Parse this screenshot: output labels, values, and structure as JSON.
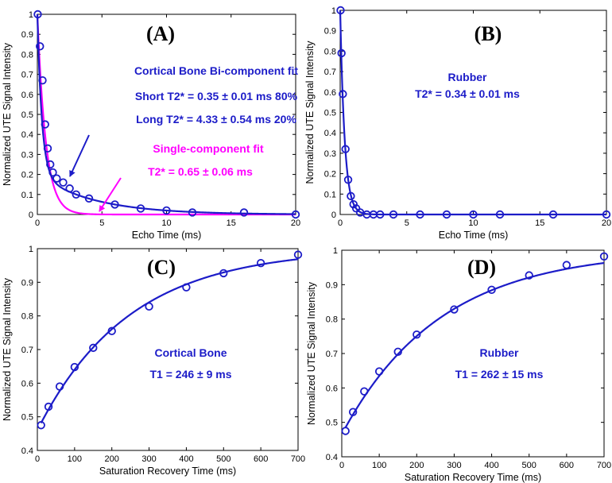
{
  "colors": {
    "blue": "#1c1cc8",
    "magenta": "#ff00ff",
    "axis": "#000000"
  },
  "chart_data": [
    {
      "type": "scatter",
      "panel_label": "(A)",
      "xlabel": "Echo Time (ms)",
      "ylabel": "Normalized UTE Signal Intensity",
      "xlim": [
        0,
        20
      ],
      "ylim": [
        0,
        1
      ],
      "xticks": [
        "0",
        "5",
        "10",
        "15",
        "20"
      ],
      "yticks": [
        "0",
        "0.1",
        "0.2",
        "0.3",
        "0.4",
        "0.5",
        "0.6",
        "0.7",
        "0.8",
        "0.9",
        "1"
      ],
      "grid": false,
      "points": {
        "x": [
          0.03,
          0.2,
          0.4,
          0.6,
          0.8,
          1.0,
          1.2,
          1.5,
          2.0,
          2.5,
          3.0,
          4.0,
          6.0,
          8.0,
          10.0,
          12.0,
          16.0,
          20.0
        ],
        "y": [
          1.0,
          0.84,
          0.67,
          0.45,
          0.33,
          0.25,
          0.21,
          0.18,
          0.16,
          0.13,
          0.1,
          0.08,
          0.05,
          0.03,
          0.02,
          0.01,
          0.01,
          0.0
        ]
      },
      "series": [
        {
          "name": "Cortical Bone Bi-component fit",
          "model": "biexp",
          "f1": 0.8,
          "t1": 0.35,
          "f2": 0.2,
          "t2": 4.33
        },
        {
          "name": "Single-component fit",
          "model": "monoexp",
          "a": 1.0,
          "t": 0.65
        }
      ],
      "annotations": [
        {
          "text": "Cortical Bone Bi-component fit",
          "color": "blue"
        },
        {
          "text": "Short T2* = 0.35 ± 0.01 ms  80%",
          "color": "blue"
        },
        {
          "text": "Long T2* = 4.33 ± 0.54 ms  20%",
          "color": "blue"
        },
        {
          "text": "Single-component fit",
          "color": "magenta"
        },
        {
          "text": "T2* = 0.65 ± 0.06 ms",
          "color": "magenta"
        }
      ]
    },
    {
      "type": "scatter",
      "panel_label": "(B)",
      "xlabel": "Echo Time (ms)",
      "ylabel": "Normalized UTE Signal Intensity",
      "xlim": [
        0,
        20
      ],
      "ylim": [
        0,
        1
      ],
      "xticks": [
        "0",
        "5",
        "10",
        "15",
        "20"
      ],
      "yticks": [
        "0",
        "0.1",
        "0.2",
        "0.3",
        "0.4",
        "0.5",
        "0.6",
        "0.7",
        "0.8",
        "0.9",
        "1"
      ],
      "grid": false,
      "points": {
        "x": [
          0.03,
          0.1,
          0.2,
          0.4,
          0.6,
          0.8,
          1.0,
          1.2,
          1.5,
          2.0,
          2.5,
          3.0,
          4.0,
          6.0,
          8.0,
          10.0,
          12.0,
          16.0,
          20.0
        ],
        "y": [
          1.0,
          0.79,
          0.59,
          0.32,
          0.17,
          0.09,
          0.05,
          0.03,
          0.01,
          0.0,
          0.0,
          0.0,
          0.0,
          0.0,
          0.0,
          0.0,
          0.0,
          0.0,
          0.0
        ]
      },
      "series": [
        {
          "name": "Rubber",
          "model": "monoexp",
          "a": 1.0,
          "t": 0.34
        }
      ],
      "annotations": [
        {
          "text": "Rubber",
          "color": "blue"
        },
        {
          "text": "T2* = 0.34 ± 0.01 ms",
          "color": "blue"
        }
      ]
    },
    {
      "type": "scatter",
      "panel_label": "(C)",
      "xlabel": "Saturation Recovery  Time (ms)",
      "ylabel": "Normalized UTE Signal Intensity",
      "xlim": [
        0,
        700
      ],
      "ylim": [
        0.4,
        1
      ],
      "xticks": [
        "0",
        "100",
        "200",
        "300",
        "400",
        "500",
        "600",
        "700"
      ],
      "yticks": [
        "0.4",
        "0.5",
        "0.6",
        "0.7",
        "0.8",
        "0.9",
        "1"
      ],
      "grid": false,
      "points": {
        "x": [
          10,
          30,
          60,
          100,
          150,
          200,
          300,
          400,
          500,
          600,
          700
        ],
        "y": [
          0.475,
          0.53,
          0.59,
          0.648,
          0.705,
          0.755,
          0.828,
          0.885,
          0.927,
          0.957,
          0.982
        ]
      },
      "series": [
        {
          "name": "Cortical Bone",
          "model": "recovery",
          "y0": 0.46,
          "t": 246
        }
      ],
      "annotations": [
        {
          "text": "Cortical Bone",
          "color": "blue"
        },
        {
          "text": "T1 = 246 ± 9 ms",
          "color": "blue"
        }
      ]
    },
    {
      "type": "scatter",
      "panel_label": "(D)",
      "xlabel": "Saturation Recovery  Time (ms)",
      "ylabel": "Normalized UTE Signal Intensity",
      "xlim": [
        0,
        700
      ],
      "ylim": [
        0.4,
        1
      ],
      "xticks": [
        "0",
        "100",
        "200",
        "300",
        "400",
        "500",
        "600",
        "700"
      ],
      "yticks": [
        "0.4",
        "0.5",
        "0.6",
        "0.7",
        "0.8",
        "0.9",
        "1"
      ],
      "grid": false,
      "points": {
        "x": [
          10,
          30,
          60,
          100,
          150,
          200,
          300,
          400,
          500,
          600,
          700
        ],
        "y": [
          0.475,
          0.53,
          0.59,
          0.648,
          0.705,
          0.755,
          0.828,
          0.885,
          0.927,
          0.957,
          0.982
        ]
      },
      "series": [
        {
          "name": "Rubber",
          "model": "recovery",
          "y0": 0.465,
          "t": 262
        }
      ],
      "annotations": [
        {
          "text": "Rubber",
          "color": "blue"
        },
        {
          "text": "T1 = 262 ± 15 ms",
          "color": "blue"
        }
      ]
    }
  ]
}
